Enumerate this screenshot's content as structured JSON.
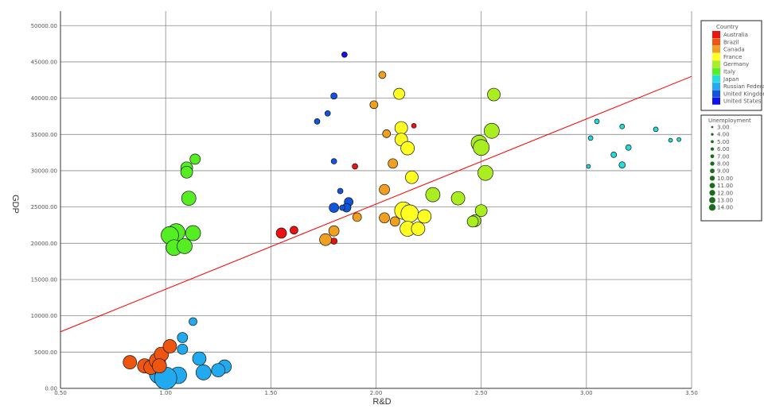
{
  "chart_data": {
    "type": "scatter",
    "xlabel": "R&D",
    "ylabel": "GDP",
    "xlim": [
      0.5,
      3.5
    ],
    "ylim": [
      0,
      52000
    ],
    "x_ticks": [
      "0.50",
      "1.00",
      "1.50",
      "2.00",
      "2.50",
      "3.00",
      "3.50"
    ],
    "y_ticks": [
      "0.00",
      "5000.00",
      "10000.00",
      "15000.00",
      "20000.00",
      "25000.00",
      "30000.00",
      "35000.00",
      "40000.00",
      "45000.00",
      "50000.00"
    ],
    "grid": true,
    "trendline": {
      "x1": 0.5,
      "y1": 7800,
      "x2": 3.5,
      "y2": 43000,
      "color": "#ff0000"
    },
    "legend_color": {
      "title": "Country",
      "placement": "top-right",
      "items": [
        {
          "label": "Australia",
          "color": "#ee1111"
        },
        {
          "label": "Brazil",
          "color": "#ee5511"
        },
        {
          "label": "Canada",
          "color": "#f0a020"
        },
        {
          "label": "France",
          "color": "#ffff22"
        },
        {
          "label": "Germany",
          "color": "#aaee22"
        },
        {
          "label": "Italy",
          "color": "#55ee22"
        },
        {
          "label": "Japan",
          "color": "#22dddd"
        },
        {
          "label": "Russian Federation",
          "color": "#22aaee"
        },
        {
          "label": "United Kingdom",
          "color": "#1155dd"
        },
        {
          "label": "United States",
          "color": "#1111ee"
        }
      ]
    },
    "legend_size": {
      "title": "Unemployment",
      "color": "#1a6d1a",
      "items": [
        "3.00",
        "4.00",
        "5.00",
        "6.00",
        "7.00",
        "8.00",
        "9.00",
        "10.00",
        "11.00",
        "12.00",
        "13.00",
        "14.00"
      ]
    },
    "series": [
      {
        "color": "#1111ee",
        "points": [
          [
            1.85,
            46000,
            3.5
          ]
        ]
      },
      {
        "color": "#1155dd",
        "points": [
          [
            1.8,
            40300,
            4
          ],
          [
            1.77,
            37900,
            3.5
          ],
          [
            1.72,
            36800,
            3.5
          ],
          [
            1.8,
            31300,
            3.5
          ],
          [
            1.83,
            27200,
            3.5
          ],
          [
            1.87,
            25700,
            5.5
          ],
          [
            1.86,
            24900,
            5.5
          ],
          [
            1.84,
            24900,
            3.5
          ],
          [
            1.8,
            24900,
            6
          ]
        ]
      },
      {
        "color": "#22aaee",
        "points": [
          [
            1.13,
            9200,
            5
          ],
          [
            1.08,
            7000,
            6.5
          ],
          [
            1.08,
            5400,
            6.5
          ],
          [
            1.16,
            4100,
            8.5
          ],
          [
            1.28,
            3000,
            8.5
          ],
          [
            1.25,
            2500,
            8.5
          ],
          [
            1.18,
            2200,
            9.5
          ],
          [
            1.06,
            1800,
            10.5
          ],
          [
            0.97,
            2000,
            12.5
          ],
          [
            1.0,
            1400,
            14
          ]
        ]
      },
      {
        "color": "#ee5511",
        "points": [
          [
            0.83,
            3600,
            8.5
          ],
          [
            0.9,
            3100,
            9
          ],
          [
            0.93,
            2900,
            9
          ],
          [
            0.96,
            3800,
            10
          ],
          [
            0.98,
            4700,
            9
          ],
          [
            1.02,
            5800,
            8.5
          ],
          [
            0.97,
            3100,
            9
          ]
        ]
      },
      {
        "color": "#55ee22",
        "points": [
          [
            1.14,
            31600,
            6.5
          ],
          [
            1.1,
            30400,
            7.5
          ],
          [
            1.1,
            29800,
            7.5
          ],
          [
            1.11,
            26200,
            9
          ],
          [
            1.05,
            21500,
            11
          ],
          [
            1.02,
            21100,
            11
          ],
          [
            1.04,
            19400,
            10
          ],
          [
            1.09,
            19600,
            9.5
          ],
          [
            1.13,
            21400,
            9.5
          ]
        ]
      },
      {
        "color": "#ee1111",
        "points": [
          [
            2.18,
            36200,
            3
          ],
          [
            1.9,
            30600,
            3.5
          ],
          [
            1.61,
            21800,
            5
          ],
          [
            1.55,
            21400,
            6.5
          ],
          [
            1.8,
            20300,
            4
          ]
        ]
      },
      {
        "color": "#f0a020",
        "points": [
          [
            2.03,
            43200,
            4.5
          ],
          [
            1.99,
            39100,
            5
          ],
          [
            2.05,
            35100,
            5
          ],
          [
            2.08,
            31000,
            6
          ],
          [
            2.04,
            27400,
            6.5
          ],
          [
            1.91,
            23600,
            5.5
          ],
          [
            2.04,
            23500,
            6.5
          ],
          [
            2.09,
            23000,
            6
          ],
          [
            1.8,
            21700,
            6.5
          ],
          [
            1.76,
            20500,
            7.5
          ]
        ]
      },
      {
        "color": "#ffff22",
        "points": [
          [
            2.11,
            40600,
            7
          ],
          [
            2.12,
            35900,
            8
          ],
          [
            2.12,
            34300,
            8
          ],
          [
            2.15,
            33100,
            8.5
          ],
          [
            2.17,
            29100,
            8
          ],
          [
            2.13,
            24500,
            11
          ],
          [
            2.16,
            24100,
            11
          ],
          [
            2.23,
            23700,
            8.5
          ],
          [
            2.15,
            22000,
            9.5
          ],
          [
            2.2,
            22000,
            8.5
          ]
        ]
      },
      {
        "color": "#aaee22",
        "points": [
          [
            2.56,
            40500,
            8
          ],
          [
            2.55,
            35500,
            9.5
          ],
          [
            2.49,
            33800,
            10
          ],
          [
            2.5,
            33200,
            10
          ],
          [
            2.52,
            29700,
            9.5
          ],
          [
            2.27,
            26700,
            9
          ],
          [
            2.39,
            26200,
            8.5
          ],
          [
            2.5,
            24500,
            7.5
          ],
          [
            2.47,
            23100,
            7.5
          ],
          [
            2.46,
            23000,
            7
          ]
        ]
      },
      {
        "color": "#22dddd",
        "points": [
          [
            3.05,
            36800,
            3
          ],
          [
            3.17,
            36100,
            3
          ],
          [
            3.33,
            35700,
            3
          ],
          [
            3.02,
            34500,
            3
          ],
          [
            3.2,
            33200,
            3.5
          ],
          [
            3.13,
            32200,
            3.5
          ],
          [
            3.17,
            30800,
            4
          ],
          [
            3.4,
            34200,
            2.5
          ],
          [
            3.44,
            34300,
            2.5
          ],
          [
            3.01,
            30600,
            2.5
          ]
        ]
      }
    ]
  }
}
